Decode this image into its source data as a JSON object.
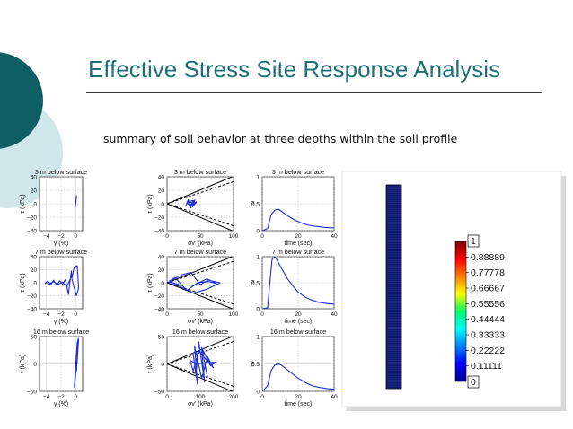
{
  "slide": {
    "title": "Effective Stress Site Response Analysis",
    "subtitle": "summary of soil behavior at three depths within the soil profile"
  },
  "colors": {
    "title": "#1f6f78",
    "circle_dark": "#0e5f63",
    "circle_light": "#cfe6ea",
    "line": "#1f2fd6",
    "column_fill": "#101a73"
  },
  "chart_data": [
    {
      "type": "line",
      "title": "3 m below surface",
      "xlabel": "γ (%)",
      "ylabel": "τ (kPa)",
      "xticks": [
        "−4",
        "−2",
        "0"
      ],
      "yticks": [
        "40",
        "20",
        "0",
        "−20",
        "−40"
      ],
      "xlim": [
        -5,
        1
      ],
      "ylim": [
        -40,
        40
      ],
      "series": [
        {
          "x": [
            -0.1,
            0,
            0.06,
            0.1,
            0.04,
            -0.04,
            0.08,
            0.02,
            -0.02
          ],
          "y": [
            -6,
            2,
            8,
            12,
            5,
            -3,
            9,
            3,
            -1
          ]
        }
      ]
    },
    {
      "type": "line",
      "title": "3 m below surface",
      "xlabel": "σv' (kPa)",
      "ylabel": "τ (kPa)",
      "xticks": [
        "0",
        "50",
        "100"
      ],
      "yticks": [
        "40",
        "20",
        "0",
        "−20",
        "−40"
      ],
      "xlim": [
        0,
        100
      ],
      "ylim": [
        -40,
        40
      ],
      "envelopes": [
        {
          "style": "solid",
          "slope": 0.56
        },
        {
          "style": "dashed",
          "slope": 0.45
        }
      ],
      "series": [
        {
          "x": [
            28,
            32,
            36,
            30,
            40,
            34,
            44,
            38,
            42,
            36,
            30,
            34,
            40,
            44,
            38
          ],
          "y": [
            -4,
            6,
            -6,
            3,
            5,
            -3,
            2,
            -5,
            6,
            -4,
            1,
            4,
            -2,
            3,
            -1
          ]
        }
      ]
    },
    {
      "type": "line",
      "title": "3 m below surface",
      "xlabel": "time (sec)",
      "ylabel": "ru",
      "xticks": [
        "0",
        "20",
        "40"
      ],
      "yticks": [
        "1",
        "0.5",
        "0"
      ],
      "xlim": [
        0,
        40
      ],
      "ylim": [
        0,
        1
      ],
      "series": [
        {
          "x": [
            0,
            3,
            5,
            7,
            9,
            11,
            14,
            18,
            22,
            26,
            30,
            35,
            40
          ],
          "y": [
            0,
            0.04,
            0.3,
            0.38,
            0.4,
            0.35,
            0.28,
            0.2,
            0.14,
            0.1,
            0.08,
            0.06,
            0.05
          ]
        }
      ]
    },
    {
      "type": "line",
      "title": "7 m below surface",
      "xlabel": "γ (%)",
      "ylabel": "τ (kPa)",
      "xticks": [
        "−4",
        "−2",
        "0"
      ],
      "yticks": [
        "40",
        "20",
        "0",
        "−20",
        "−40"
      ],
      "xlim": [
        -5,
        1
      ],
      "ylim": [
        -40,
        40
      ],
      "series": [
        {
          "x": [
            -4.2,
            -3.8,
            -3.4,
            -3.0,
            -2.6,
            -2.2,
            -1.8,
            -1.4,
            -1.0,
            -0.6,
            -0.5,
            -0.2,
            0.2,
            0.4,
            0.1,
            -0.3,
            -0.6,
            -0.9,
            -1.2,
            -1.8,
            -2.4,
            -3.0,
            -3.6,
            -4.2
          ],
          "y": [
            -2,
            3,
            -3,
            4,
            -4,
            3,
            -2,
            5,
            -18,
            18,
            8,
            24,
            26,
            -8,
            -20,
            -4,
            10,
            2,
            -6,
            1,
            -3,
            2,
            -2,
            0
          ]
        }
      ]
    },
    {
      "type": "line",
      "title": "7 m below surface",
      "xlabel": "σv' (kPa)",
      "ylabel": "τ (kPa)",
      "xticks": [
        "0",
        "50",
        "100"
      ],
      "yticks": [
        "40",
        "20",
        "0",
        "−20",
        "−40"
      ],
      "xlim": [
        0,
        100
      ],
      "ylim": [
        -40,
        40
      ],
      "envelopes": [
        {
          "style": "solid",
          "slope": 0.56
        },
        {
          "style": "dashed",
          "slope": 0.45
        }
      ],
      "series": [
        {
          "x": [
            2,
            10,
            22,
            36,
            50,
            62,
            80,
            60,
            40,
            20,
            8,
            4,
            12,
            30,
            46,
            62,
            76,
            60,
            40,
            18,
            6,
            2
          ],
          "y": [
            0,
            6,
            12,
            16,
            -3,
            4,
            0,
            -10,
            -16,
            -6,
            -2,
            3,
            8,
            -12,
            0,
            2,
            -2,
            6,
            -4,
            -3,
            1,
            0
          ]
        }
      ]
    },
    {
      "type": "line",
      "title": "7 m below surface",
      "xlabel": "time (sec)",
      "ylabel": "ru",
      "xticks": [
        "0",
        "20",
        "40"
      ],
      "yticks": [
        "1",
        "0.5",
        "0"
      ],
      "xlim": [
        0,
        40
      ],
      "ylim": [
        0,
        1
      ],
      "series": [
        {
          "x": [
            0,
            3,
            4.5,
            5.5,
            7,
            8.5,
            10,
            12,
            14,
            17,
            20,
            24,
            28,
            32,
            36,
            40
          ],
          "y": [
            0,
            0.02,
            0.6,
            0.95,
            1.0,
            0.92,
            0.82,
            0.7,
            0.58,
            0.44,
            0.32,
            0.22,
            0.16,
            0.12,
            0.1,
            0.09
          ]
        }
      ]
    },
    {
      "type": "line",
      "title": "16 m below surface",
      "xlabel": "γ (%)",
      "ylabel": "τ (kPa)",
      "xticks": [
        "−4",
        "−2",
        "0"
      ],
      "yticks": [
        "50",
        "0",
        "−50"
      ],
      "xlim": [
        -5,
        1
      ],
      "ylim": [
        -75,
        75
      ],
      "series": [
        {
          "x": [
            -0.2,
            0.2,
            -0.15,
            0.25,
            -0.1,
            0.3,
            -0.05,
            0.35,
            0.1,
            0.4
          ],
          "y": [
            -65,
            58,
            -60,
            62,
            -50,
            66,
            -40,
            70,
            -20,
            68
          ]
        }
      ]
    },
    {
      "type": "line",
      "title": "16 m below surface",
      "xlabel": "σv' (kPa)",
      "ylabel": "τ (kPa)",
      "xticks": [
        "0",
        "100",
        "200"
      ],
      "yticks": [
        "50",
        "0",
        "−50"
      ],
      "xlim": [
        0,
        230
      ],
      "ylim": [
        -75,
        75
      ],
      "envelopes": [
        {
          "style": "solid",
          "slope": 0.56
        },
        {
          "style": "dashed",
          "slope": 0.45
        }
      ],
      "series": [
        {
          "x": [
            150,
            120,
            130,
            110,
            100,
            90,
            105,
            95,
            120,
            140,
            160,
            110,
            90,
            80,
            100,
            170,
            150,
            120,
            140,
            130
          ],
          "y": [
            0,
            40,
            -50,
            60,
            -30,
            30,
            -55,
            50,
            -40,
            20,
            -10,
            35,
            -20,
            10,
            0,
            5,
            -5,
            45,
            -35,
            0
          ]
        }
      ]
    },
    {
      "type": "line",
      "title": "16 m below surface",
      "xlabel": "time (sec)",
      "ylabel": "ru",
      "xticks": [
        "0",
        "20",
        "40"
      ],
      "yticks": [
        "1",
        "0.5",
        "0"
      ],
      "xlim": [
        0,
        40
      ],
      "ylim": [
        0,
        1
      ],
      "series": [
        {
          "x": [
            0,
            3,
            5,
            7,
            9,
            11,
            13,
            16,
            20,
            24,
            28,
            32,
            36,
            40
          ],
          "y": [
            0,
            0.1,
            0.38,
            0.48,
            0.5,
            0.47,
            0.42,
            0.34,
            0.24,
            0.16,
            0.1,
            0.07,
            0.05,
            0.04
          ]
        }
      ]
    },
    {
      "type": "heatmap",
      "title": "",
      "colorbar": {
        "min_label": "0",
        "max_label": "1",
        "tick_labels": [
          "0.88889",
          "0.77778",
          "0.66667",
          "0.55556",
          "0.44444",
          "0.33333",
          "0.22222",
          "0.11111"
        ]
      }
    }
  ]
}
